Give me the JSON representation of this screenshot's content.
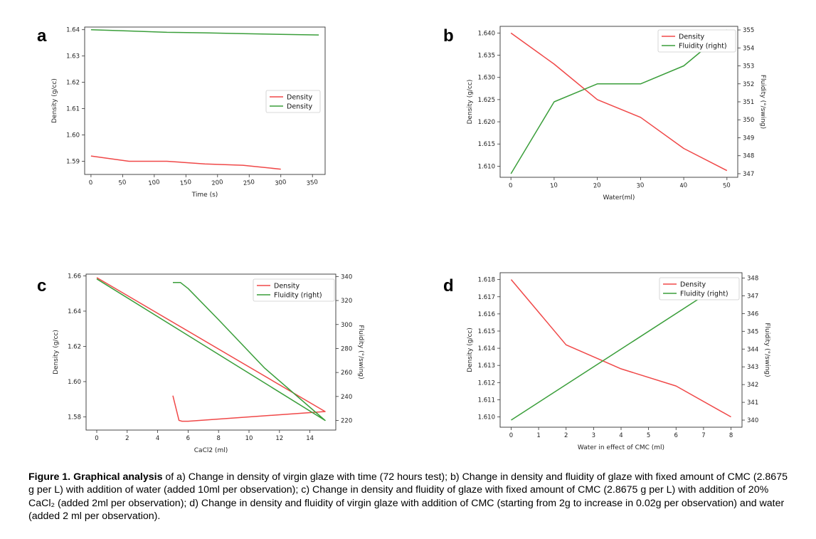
{
  "caption": {
    "bold": "Figure 1. Graphical analysis",
    "text": " of a) Change in density of virgin glaze with time (72 hours test); b) Change in density and fluidity of glaze with fixed amount of CMC (2.8675 g per L) with addition of water (added 10ml per observation); c) Change in density and fluidity of glaze with fixed amount of CMC (2.8675 g per L) with addition of 20% CaCl₂ (added 2ml per observation); d) Change in density and fluidity of virgin glaze with addition of CMC (starting from 2g to increase in 0.02g per observation) and water (added 2 ml per observation)."
  },
  "colors": {
    "red": "#f04848",
    "green": "#3a9e3a"
  },
  "chart_data": [
    {
      "panel": "a",
      "type": "line",
      "xlabel": "Time (s)",
      "ylabel": "Density (g/cc)",
      "xlim": [
        -10,
        370
      ],
      "ylim": [
        1.585,
        1.641
      ],
      "xticks": [
        0,
        50,
        100,
        150,
        200,
        250,
        300,
        350
      ],
      "yticks": [
        1.59,
        1.6,
        1.61,
        1.62,
        1.63,
        1.64
      ],
      "ytick_labels": [
        "1.59",
        "1.60",
        "1.61",
        "1.62",
        "1.63",
        "1.64"
      ],
      "legend_position": "center-right",
      "series": [
        {
          "name": "Density",
          "color": "red",
          "axis": "left",
          "x": [
            0,
            60,
            120,
            180,
            240,
            300
          ],
          "y": [
            1.592,
            1.59,
            1.59,
            1.589,
            1.5885,
            1.587
          ]
        },
        {
          "name": "Density",
          "color": "green",
          "axis": "left",
          "x": [
            0,
            60,
            120,
            180,
            240,
            300,
            360
          ],
          "y": [
            1.64,
            1.6395,
            1.639,
            1.6388,
            1.6385,
            1.6382,
            1.638
          ]
        }
      ]
    },
    {
      "panel": "b",
      "type": "line",
      "xlabel": "Water(ml)",
      "ylabel": "Density (g/cc)",
      "ylabel_right": "Fluidity (°/swing)",
      "xlim": [
        -2.5,
        52.5
      ],
      "ylim": [
        1.6075,
        1.6415
      ],
      "ylim_right": [
        346.8,
        355.2
      ],
      "xticks": [
        0,
        10,
        20,
        30,
        40,
        50
      ],
      "yticks": [
        1.61,
        1.615,
        1.62,
        1.625,
        1.63,
        1.635,
        1.64
      ],
      "ytick_labels": [
        "1.610",
        "1.615",
        "1.620",
        "1.625",
        "1.630",
        "1.635",
        "1.640"
      ],
      "yticks_right": [
        347,
        348,
        349,
        350,
        351,
        352,
        353,
        354,
        355
      ],
      "legend_position": "top-right",
      "series": [
        {
          "name": "Density",
          "color": "red",
          "axis": "left",
          "x": [
            0,
            10,
            20,
            30,
            40,
            50
          ],
          "y": [
            1.64,
            1.633,
            1.625,
            1.621,
            1.614,
            1.609
          ]
        },
        {
          "name": "Fluidity (right)",
          "color": "green",
          "axis": "right",
          "x": [
            0,
            10,
            20,
            30,
            40,
            50
          ],
          "y": [
            347,
            351,
            352,
            352,
            353,
            355
          ]
        }
      ]
    },
    {
      "panel": "c",
      "type": "line",
      "xlabel": "CaCl2 (ml)",
      "ylabel": "Density (g/cc)",
      "ylabel_right": "Fluidity (°/swing)",
      "xlim": [
        -0.7,
        15.7
      ],
      "ylim": [
        1.5725,
        1.661
      ],
      "ylim_right": [
        212,
        342
      ],
      "xticks": [
        0,
        2,
        4,
        6,
        8,
        10,
        12,
        14
      ],
      "yticks": [
        1.58,
        1.6,
        1.62,
        1.64,
        1.66
      ],
      "ytick_labels": [
        "1.58",
        "1.60",
        "1.62",
        "1.64",
        "1.66"
      ],
      "yticks_right": [
        220,
        240,
        260,
        280,
        300,
        320,
        340
      ],
      "legend_position": "top-right",
      "series": [
        {
          "name": "Density",
          "color": "red",
          "axis": "left",
          "x": [
            0,
            15,
            6,
            5.6,
            5.4,
            5
          ],
          "y": [
            1.659,
            1.583,
            1.5775,
            1.5775,
            1.578,
            1.592
          ]
        },
        {
          "name": "Fluidity (right)",
          "color": "green",
          "axis": "right",
          "x": [
            0,
            15,
            11,
            8,
            6,
            5.5,
            5
          ],
          "y": [
            338,
            220,
            264,
            304,
            330,
            335,
            335
          ]
        }
      ]
    },
    {
      "panel": "d",
      "type": "line",
      "xlabel": "Water in effect of CMC (ml)",
      "ylabel": "Density (g/cc)",
      "ylabel_right": "Fluidity (°/swing)",
      "xlim": [
        -0.4,
        8.4
      ],
      "ylim": [
        1.6094,
        1.6184
      ],
      "ylim_right": [
        339.6,
        348.3
      ],
      "xticks": [
        0,
        1,
        2,
        3,
        4,
        5,
        6,
        7,
        8
      ],
      "yticks": [
        1.61,
        1.611,
        1.612,
        1.613,
        1.614,
        1.615,
        1.616,
        1.617,
        1.618
      ],
      "ytick_labels": [
        "1.610",
        "1.611",
        "1.612",
        "1.613",
        "1.614",
        "1.615",
        "1.616",
        "1.617",
        "1.618"
      ],
      "yticks_right": [
        340,
        341,
        342,
        343,
        344,
        345,
        346,
        347,
        348
      ],
      "legend_position": "top-right",
      "series": [
        {
          "name": "Density",
          "color": "red",
          "axis": "left",
          "x": [
            0,
            2,
            4,
            6,
            8
          ],
          "y": [
            1.618,
            1.6142,
            1.6128,
            1.6118,
            1.61
          ]
        },
        {
          "name": "Fluidity (right)",
          "color": "green",
          "axis": "right",
          "x": [
            0,
            8
          ],
          "y": [
            340,
            348
          ]
        }
      ]
    }
  ]
}
